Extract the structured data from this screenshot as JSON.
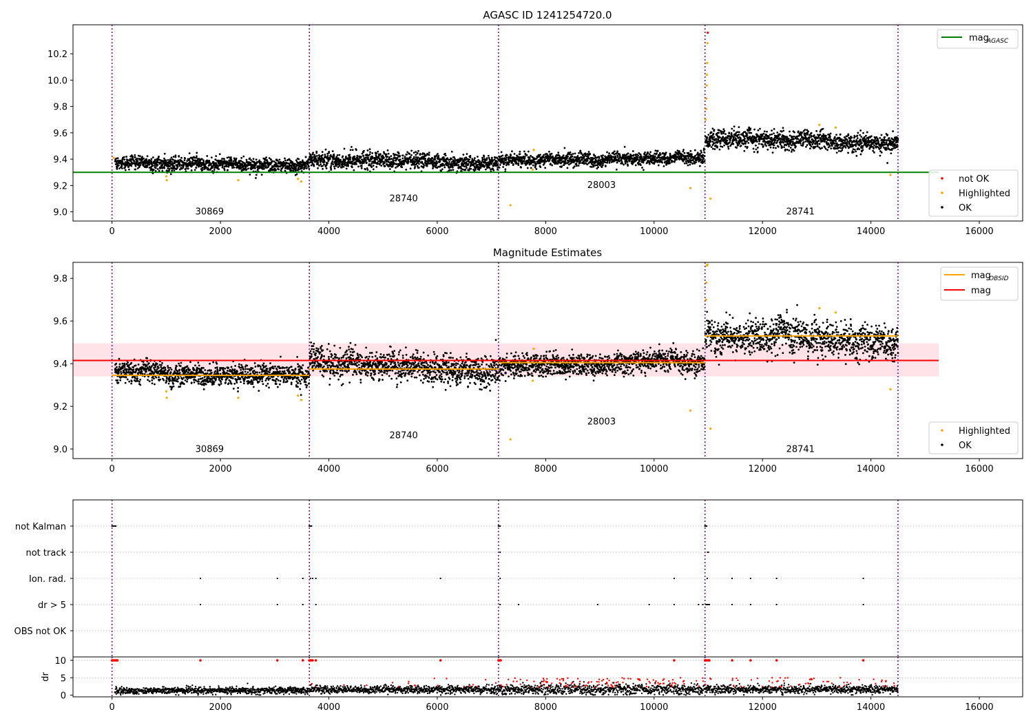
{
  "figure": {
    "title": "AGASC ID 1241254720.0",
    "x_ticks": [
      0,
      2000,
      4000,
      6000,
      8000,
      10000,
      12000,
      14000,
      16000
    ],
    "xlim": [
      -720,
      16800
    ],
    "boundaries": [
      0,
      3640,
      7130,
      10940,
      14500
    ],
    "obsids": [
      {
        "label": "30869",
        "x": 1800
      },
      {
        "label": "28740",
        "x": 5380
      },
      {
        "label": "28003",
        "x": 9030
      },
      {
        "label": "28741",
        "x": 12700
      }
    ],
    "colors": {
      "ok": "#000000",
      "highlighted": "#ffa500",
      "not_ok": "#ff0000",
      "agasc_line": "#008000",
      "mag_line": "#ff0000",
      "mag_obsid": "#ffa500",
      "band": "#ffc0cb",
      "boundary": "#800080"
    }
  },
  "chart_data": [
    {
      "type": "scatter",
      "title": "AGASC ID 1241254720.0",
      "ylim": [
        8.93,
        10.42
      ],
      "y_ticks": [
        9.0,
        9.2,
        9.4,
        9.6,
        9.8,
        10.0,
        10.2
      ],
      "y_tick_labels": [
        "9.0",
        "9.2",
        "9.4",
        "9.6",
        "9.8",
        "10.0",
        "10.2"
      ],
      "agasc_mag": 9.3,
      "segments": [
        {
          "obsid": "30869",
          "x": [
            60,
            3630
          ],
          "mean": 9.36,
          "spread": 0.045,
          "trend": -0.03,
          "label_y": 8.98
        },
        {
          "obsid": "28740",
          "x": [
            3650,
            7120
          ],
          "mean": 9.38,
          "spread": 0.055,
          "trend": -0.05,
          "label_y": 9.08
        },
        {
          "obsid": "28003",
          "x": [
            7140,
            10930
          ],
          "mean": 9.4,
          "spread": 0.045,
          "trend": 0.02,
          "label_y": 9.18
        },
        {
          "obsid": "28741",
          "x": [
            10950,
            14500
          ],
          "mean": 9.54,
          "spread": 0.06,
          "trend": -0.03,
          "label_y": 8.98
        }
      ],
      "highlighted_points": [
        [
          30,
          9.41
        ],
        [
          1000,
          9.27
        ],
        [
          1010,
          9.24
        ],
        [
          2330,
          9.24
        ],
        [
          3430,
          9.25
        ],
        [
          3490,
          9.23
        ],
        [
          7350,
          9.05
        ],
        [
          7780,
          9.47
        ],
        [
          7760,
          9.32
        ],
        [
          10670,
          9.18
        ],
        [
          11040,
          9.1
        ],
        [
          14360,
          9.28
        ],
        [
          13050,
          9.66
        ],
        [
          13350,
          9.64
        ],
        [
          10950,
          9.7
        ],
        [
          10960,
          9.78
        ],
        [
          10965,
          9.86
        ],
        [
          10970,
          9.96
        ],
        [
          10975,
          10.04
        ],
        [
          10980,
          10.13
        ],
        [
          10985,
          10.28
        ]
      ],
      "not_ok_points": [
        [
          10990,
          10.36
        ]
      ],
      "legend_top": [
        {
          "label": "mag",
          "subscript": "AGASC",
          "color": "#008000"
        }
      ],
      "legend_bottom": [
        {
          "label": "not OK",
          "color": "#ff0000"
        },
        {
          "label": "Highlighted",
          "color": "#ffa500"
        },
        {
          "label": "OK",
          "color": "#000000"
        }
      ]
    },
    {
      "type": "scatter",
      "title": "Magnitude Estimates",
      "ylim": [
        8.955,
        9.875
      ],
      "y_ticks": [
        9.0,
        9.2,
        9.4,
        9.6,
        9.8
      ],
      "y_tick_labels": [
        "9.0",
        "9.2",
        "9.4",
        "9.6",
        "9.8"
      ],
      "mag": 9.415,
      "mag_band": [
        9.34,
        9.495
      ],
      "mag_obsid": [
        {
          "x": [
            0,
            3640
          ],
          "value": 9.345
        },
        {
          "x": [
            3640,
            7130
          ],
          "value": 9.375
        },
        {
          "x": [
            7130,
            10940
          ],
          "value": 9.405
        },
        {
          "x": [
            10940,
            14500
          ],
          "value": 9.53
        }
      ],
      "segments": [
        {
          "obsid": "30869",
          "x": [
            60,
            3630
          ],
          "mean": 9.35,
          "spread": 0.045,
          "trend": -0.03,
          "label_y": 8.985
        },
        {
          "obsid": "28740",
          "x": [
            3650,
            7120
          ],
          "mean": 9.38,
          "spread": 0.06,
          "trend": -0.05,
          "label_y": 9.05
        },
        {
          "obsid": "28003",
          "x": [
            7140,
            10930
          ],
          "mean": 9.4,
          "spread": 0.045,
          "trend": 0.02,
          "label_y": 9.115
        },
        {
          "obsid": "28741",
          "x": [
            10950,
            14500
          ],
          "mean": 9.52,
          "spread": 0.07,
          "trend": -0.03,
          "label_y": 8.985
        }
      ],
      "highlighted_points": [
        [
          1000,
          9.27
        ],
        [
          1010,
          9.24
        ],
        [
          2330,
          9.24
        ],
        [
          3430,
          9.25
        ],
        [
          3490,
          9.23
        ],
        [
          7350,
          9.045
        ],
        [
          7780,
          9.47
        ],
        [
          7760,
          9.32
        ],
        [
          10670,
          9.18
        ],
        [
          11040,
          9.095
        ],
        [
          14360,
          9.28
        ],
        [
          13050,
          9.66
        ],
        [
          13350,
          9.64
        ],
        [
          10960,
          9.7
        ],
        [
          10965,
          9.78
        ],
        [
          10975,
          9.86
        ],
        [
          10985,
          9.865
        ]
      ],
      "legend_top": [
        {
          "label": "mag",
          "subscript": "OBSID",
          "color": "#ffa500"
        },
        {
          "label": "mag",
          "subscript": "",
          "color": "#ff0000"
        }
      ],
      "legend_bottom": [
        {
          "label": "Highlighted",
          "color": "#ffa500"
        },
        {
          "label": "OK",
          "color": "#000000"
        }
      ]
    },
    {
      "type": "scatter",
      "title": "",
      "categories": [
        "not Kalman",
        "not track",
        "Ion. rad.",
        "dr > 5",
        "OBS not OK"
      ],
      "flag_points": {
        "not Kalman": [
          0,
          10,
          20,
          30,
          40,
          50,
          60,
          70,
          3640,
          3650,
          3660,
          3670,
          3680,
          7130,
          7140,
          7150,
          7160,
          10940,
          10950,
          10960,
          10970
        ],
        "not track": [
          7160,
          10990,
          11000
        ],
        "Ion. rad.": [
          1630,
          3050,
          3520,
          3660,
          3700,
          3760,
          6060,
          7160,
          10370,
          10980,
          11440,
          11780,
          12260,
          13860
        ],
        "dr > 5": [
          1630,
          3050,
          3520,
          3760,
          7160,
          7500,
          8960,
          9910,
          10370,
          10820,
          10900,
          10960,
          10980,
          11000,
          11020,
          11440,
          11780,
          12260,
          13860
        ],
        "OBS not OK": []
      },
      "dr_ylim": [
        -0.5,
        11
      ],
      "dr_ticks": [
        0,
        5,
        10
      ],
      "dr_tick_labels": [
        "0",
        "5",
        "10"
      ],
      "ylabel": "dr",
      "dr_threshold": 5,
      "dr_segments": [
        {
          "x": [
            60,
            3630
          ],
          "mean": 1.3,
          "spread": 0.8,
          "red_fraction": 0.0
        },
        {
          "x": [
            3650,
            7120
          ],
          "mean": 1.6,
          "spread": 0.9,
          "red_fraction": 0.03
        },
        {
          "x": [
            7140,
            10930
          ],
          "mean": 1.6,
          "spread": 1.3,
          "red_fraction": 0.14
        },
        {
          "x": [
            10950,
            14500
          ],
          "mean": 1.6,
          "spread": 1.0,
          "red_fraction": 0.05
        }
      ],
      "dr_spikes": [
        0,
        20,
        40,
        60,
        80,
        100,
        1630,
        3050,
        3520,
        3640,
        3660,
        3680,
        3700,
        3760,
        6060,
        7130,
        7150,
        7170,
        10370,
        10940,
        10960,
        10980,
        11000,
        11020,
        11440,
        11780,
        12260,
        13860
      ]
    }
  ]
}
